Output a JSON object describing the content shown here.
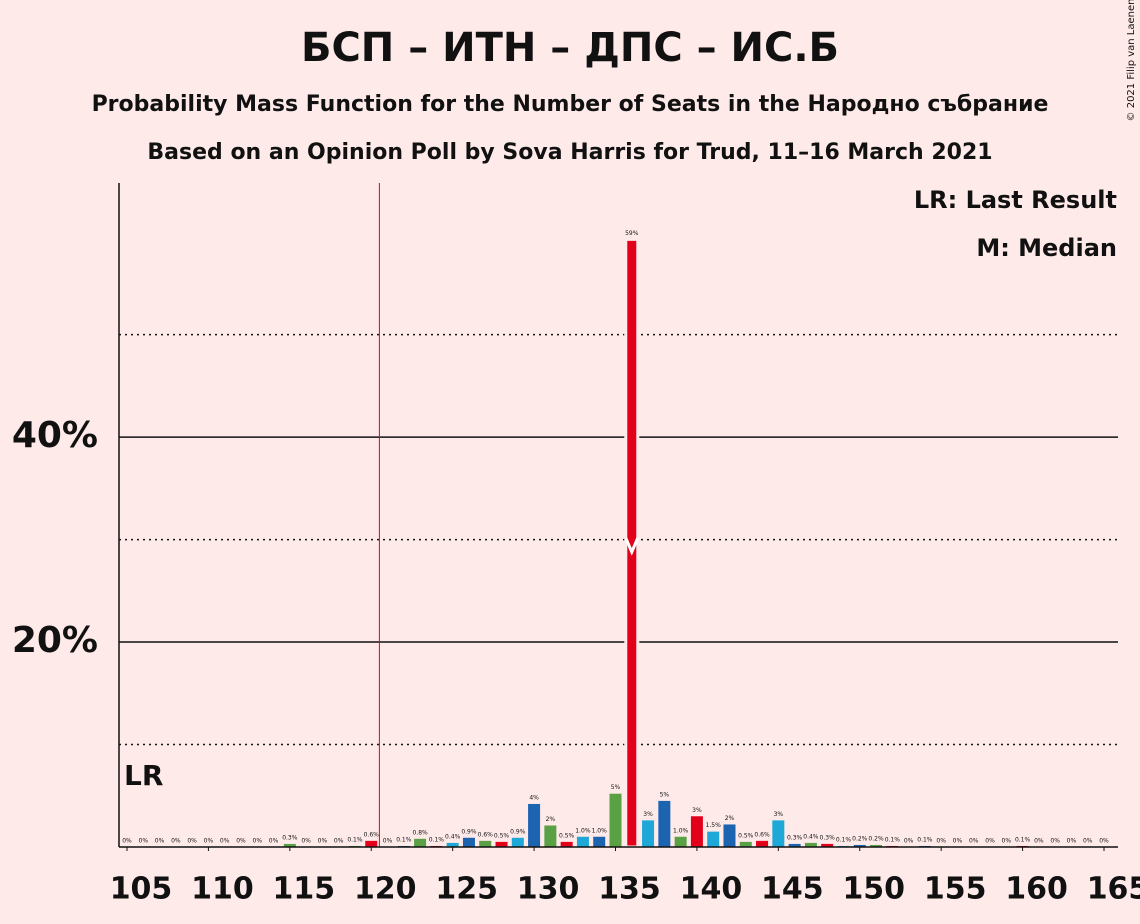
{
  "chart_data": {
    "type": "bar",
    "title": "БСП – ИТН – ДПС – ИС.Б",
    "subtitle": "Probability Mass Function for the Number of Seats in the Народно събрание",
    "subtitle2": "Based on an Opinion Poll by Sova Harris for Trud, 11–16 March 2021",
    "copyright": "© 2021 Filip van Laenen",
    "legend": [
      "LR: Last Result",
      "M: Median"
    ],
    "legend_position": "top-right",
    "last_result_label": "LR",
    "last_result": 121,
    "median": 136,
    "x": [
      105,
      106,
      107,
      108,
      109,
      110,
      111,
      112,
      113,
      114,
      115,
      116,
      117,
      118,
      119,
      120,
      121,
      122,
      123,
      124,
      125,
      126,
      127,
      128,
      129,
      130,
      131,
      132,
      133,
      134,
      135,
      136,
      137,
      138,
      139,
      140,
      141,
      142,
      143,
      144,
      145,
      146,
      147,
      148,
      149,
      150,
      151,
      152,
      153,
      154,
      155,
      156,
      157,
      158,
      159,
      160,
      161,
      162,
      163,
      164,
      165
    ],
    "values": [
      0,
      0,
      0,
      0,
      0,
      0,
      0,
      0,
      0,
      0,
      0.3,
      0,
      0,
      0,
      0.1,
      0.6,
      0,
      0.1,
      0.8,
      0.1,
      0.4,
      0.9,
      0.6,
      0.5,
      0.9,
      4.2,
      2.1,
      0.5,
      1.0,
      1.0,
      5.2,
      59.3,
      2.6,
      4.5,
      1.0,
      3.0,
      1.5,
      2.2,
      0.5,
      0.6,
      2.6,
      0.3,
      0.4,
      0.3,
      0.1,
      0.2,
      0.2,
      0.1,
      0,
      0.1,
      0,
      0,
      0,
      0,
      0,
      0.1,
      0,
      0,
      0,
      0,
      0
    ],
    "value_labels": [
      "0%",
      "0%",
      "0%",
      "0%",
      "0%",
      "0%",
      "0%",
      "0%",
      "0%",
      "0%",
      "0.3%",
      "0%",
      "0%",
      "0%",
      "0.1%",
      "0.6%",
      "0%",
      "0.1%",
      "0.8%",
      "0.1%",
      "0.4%",
      "0.9%",
      "0.6%",
      "0.5%",
      "0.9%",
      "4%",
      "2%",
      "0.5%",
      "1.0%",
      "1.0%",
      "5%",
      "59%",
      "3%",
      "5%",
      "1.0%",
      "3%",
      "1.5%",
      "2%",
      "0.5%",
      "0.6%",
      "3%",
      "0.3%",
      "0.4%",
      "0.3%",
      "0.1%",
      "0.2%",
      "0.2%",
      "0.1%",
      "0%",
      "0.1%",
      "0%",
      "0%",
      "0%",
      "0%",
      "0%",
      "0.1%",
      "0%",
      "0%",
      "0%",
      "0%",
      "0%"
    ],
    "colors": [
      "#1ea8d8",
      "#1c63b0",
      "#5aa044",
      "#e3001b"
    ],
    "xlim": [
      105,
      165
    ],
    "xticks": [
      105,
      110,
      115,
      120,
      125,
      130,
      135,
      140,
      145,
      150,
      155,
      160,
      165
    ],
    "ylim": [
      0,
      64.8
    ],
    "yticks": [
      {
        "value": 20,
        "label": "20%"
      },
      {
        "value": 40,
        "label": "40%"
      }
    ],
    "minor_gridlines": [
      10,
      30,
      50
    ],
    "grid": true
  }
}
